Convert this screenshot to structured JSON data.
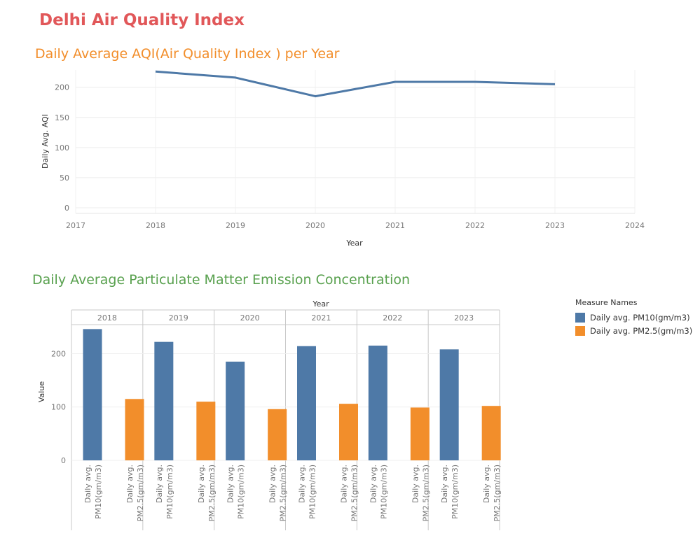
{
  "dashboard_title": "Delhi Air Quality Index",
  "colors": {
    "title": "#e15759",
    "sheet1_title": "#f28e2b",
    "sheet2_title": "#59a14f",
    "pm10": "#4e79a7",
    "pm25": "#f28e2b",
    "line": "#4e79a7"
  },
  "chart_data": [
    {
      "type": "line",
      "title": "Daily Average AQI(Air Quality Index ) per Year",
      "xlabel": "Year",
      "ylabel": "Daily Avg. AQI",
      "x_ticks": [
        "2017",
        "2018",
        "2019",
        "2020",
        "2021",
        "2022",
        "2023",
        "2024"
      ],
      "y_ticks": [
        0,
        50,
        100,
        150,
        200
      ],
      "xlim": [
        2017,
        2024
      ],
      "ylim": [
        0,
        240
      ],
      "grid": true,
      "series": [
        {
          "x": [
            2018,
            2019,
            2020,
            2021,
            2022,
            2023
          ],
          "values": [
            226,
            216,
            185,
            209,
            209,
            205
          ]
        }
      ]
    },
    {
      "type": "bar",
      "title": "Daily Average Particulate Matter Emission Concentration",
      "column_header": "Year",
      "ylabel": "Value",
      "y_ticks": [
        0,
        100,
        200
      ],
      "ylim": [
        0,
        275
      ],
      "grid": true,
      "categories": [
        "2018",
        "2019",
        "2020",
        "2021",
        "2022",
        "2023"
      ],
      "bar_labels": [
        "Daily avg. PM10(gm/m3)",
        "Daily avg. PM2.5(gm/m3)"
      ],
      "legend_title": "Measure Names",
      "legend_position": "right",
      "series": [
        {
          "name": "Daily avg. PM10(gm/m3)",
          "values": [
            246,
            222,
            185,
            214,
            215,
            208
          ]
        },
        {
          "name": "Daily avg. PM2.5(gm/m3)",
          "values": [
            115,
            110,
            96,
            106,
            99,
            102
          ]
        }
      ]
    }
  ]
}
